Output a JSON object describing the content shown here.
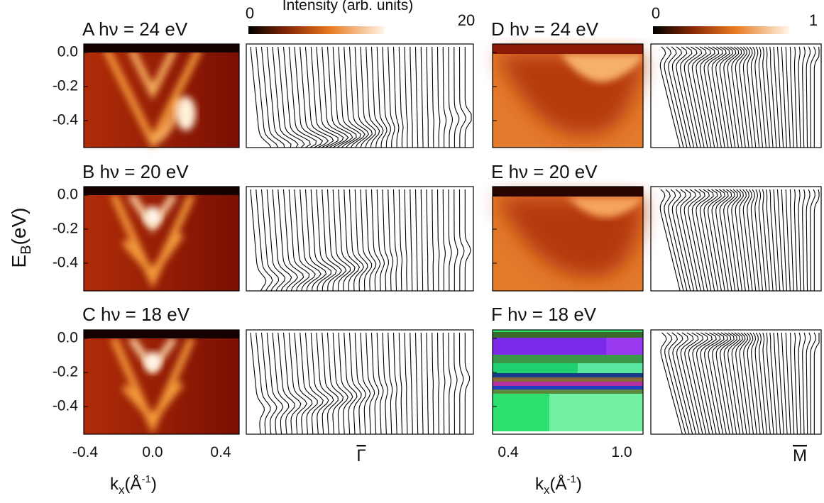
{
  "colorbars": [
    {
      "min": "0",
      "max": "20",
      "label": "Intensity (arb. units)"
    },
    {
      "min": "0",
      "max": "1"
    }
  ],
  "y_axis": {
    "label": "E",
    "subscript": "B",
    "unit": "(eV)",
    "ticks": [
      "0.0",
      "-0.2",
      "-0.4"
    ]
  },
  "panels": [
    {
      "label": "A  hν = 24 eV"
    },
    {
      "label": "B  hν = 20 eV"
    },
    {
      "label": "C  hν = 18 eV"
    },
    {
      "label": "D  hν = 24 eV"
    },
    {
      "label": "E  hν = 20 eV"
    },
    {
      "label": "F  hν = 18 eV"
    }
  ],
  "x_axes": [
    {
      "ticks": [
        "-0.4",
        "0.0",
        "0.4"
      ],
      "label": "k",
      "subscript": "x",
      "unit_open": "(Å",
      "superscript": "-1",
      "unit_close": ")"
    },
    {
      "ticks": [
        "0.4",
        "1.0"
      ],
      "label": "k",
      "subscript": "x",
      "unit_open": "(Å",
      "superscript": "-1",
      "unit_close": ")"
    }
  ],
  "edc_labels": [
    "Γ",
    "M"
  ]
}
